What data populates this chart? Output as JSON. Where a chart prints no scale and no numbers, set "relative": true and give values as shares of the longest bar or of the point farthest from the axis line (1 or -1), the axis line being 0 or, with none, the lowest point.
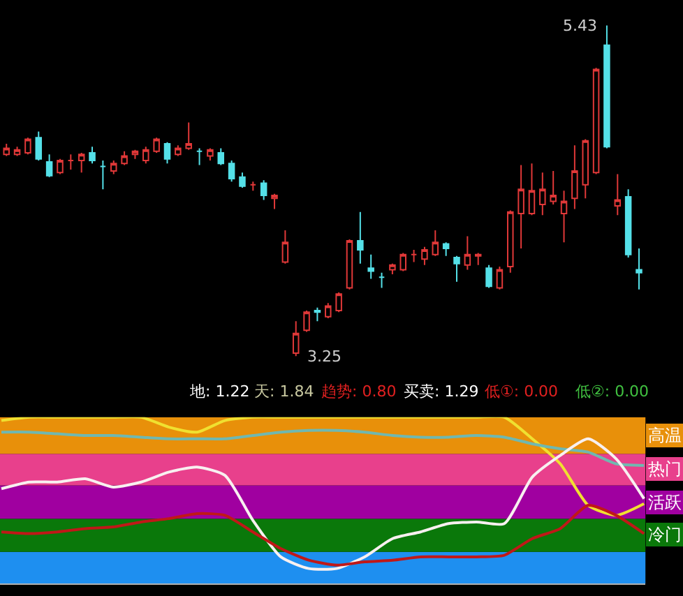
{
  "chart_data": [
    {
      "type": "candlestick",
      "categories": [
        null,
        null,
        null,
        null,
        null,
        null,
        null,
        null,
        null,
        null,
        null,
        null,
        null,
        null,
        null,
        null,
        null,
        null,
        null,
        null,
        null,
        null,
        null,
        null,
        null,
        null,
        null,
        null,
        null,
        null,
        null,
        null,
        null,
        null,
        null,
        null,
        null,
        null,
        null,
        null,
        null,
        null,
        null,
        null,
        null,
        null,
        null,
        null,
        null,
        null,
        null,
        null,
        null,
        null,
        null,
        null,
        null,
        null,
        null,
        null
      ],
      "ohlc": [
        [
          4.58,
          4.65,
          4.57,
          4.62
        ],
        [
          4.58,
          4.63,
          4.57,
          4.61
        ],
        [
          4.59,
          4.69,
          4.58,
          4.68
        ],
        [
          4.69,
          4.73,
          4.54,
          4.55
        ],
        [
          4.53,
          4.58,
          4.43,
          4.44
        ],
        [
          4.46,
          4.55,
          4.45,
          4.54
        ],
        [
          4.54,
          4.58,
          4.48,
          4.54
        ],
        [
          4.54,
          4.59,
          4.46,
          4.58
        ],
        [
          4.59,
          4.63,
          4.52,
          4.54
        ],
        [
          4.5,
          4.54,
          4.35,
          4.5
        ],
        [
          4.47,
          4.54,
          4.45,
          4.52
        ],
        [
          4.52,
          4.6,
          4.51,
          4.57
        ],
        [
          4.58,
          4.61,
          4.55,
          4.6
        ],
        [
          4.54,
          4.63,
          4.52,
          4.61
        ],
        [
          4.6,
          4.69,
          4.59,
          4.68
        ],
        [
          4.65,
          4.66,
          4.52,
          4.55
        ],
        [
          4.58,
          4.64,
          4.57,
          4.62
        ],
        [
          4.62,
          4.79,
          4.61,
          4.65
        ],
        [
          4.6,
          4.62,
          4.51,
          4.6
        ],
        [
          4.57,
          4.62,
          4.54,
          4.61
        ],
        [
          4.59,
          4.62,
          4.51,
          4.52
        ],
        [
          4.52,
          4.54,
          4.4,
          4.42
        ],
        [
          4.43,
          4.46,
          4.36,
          4.37
        ],
        [
          4.38,
          4.4,
          4.34,
          4.38
        ],
        [
          4.39,
          4.41,
          4.28,
          4.31
        ],
        [
          4.29,
          4.32,
          4.22,
          4.31
        ],
        [
          3.87,
          4.08,
          3.86,
          4.0
        ],
        [
          3.27,
          3.48,
          3.25,
          3.4
        ],
        [
          3.42,
          3.55,
          3.41,
          3.54
        ],
        [
          3.55,
          3.57,
          3.48,
          3.54
        ],
        [
          3.51,
          3.6,
          3.5,
          3.58
        ],
        [
          3.55,
          3.67,
          3.54,
          3.66
        ],
        [
          3.7,
          4.02,
          3.69,
          4.01
        ],
        [
          4.01,
          4.2,
          3.86,
          3.95
        ],
        [
          3.83,
          3.92,
          3.76,
          3.81
        ],
        [
          3.77,
          3.8,
          3.7,
          3.77
        ],
        [
          3.82,
          3.86,
          3.79,
          3.85
        ],
        [
          3.82,
          3.93,
          3.81,
          3.92
        ],
        [
          3.92,
          3.95,
          3.87,
          3.92
        ],
        [
          3.89,
          3.97,
          3.85,
          3.95
        ],
        [
          3.92,
          4.08,
          3.91,
          4.0
        ],
        [
          3.99,
          4.0,
          3.91,
          3.96
        ],
        [
          3.9,
          3.91,
          3.74,
          3.86
        ],
        [
          3.85,
          4.04,
          3.82,
          3.92
        ],
        [
          3.91,
          3.93,
          3.85,
          3.92
        ],
        [
          3.83,
          3.85,
          3.7,
          3.71
        ],
        [
          3.7,
          3.84,
          3.69,
          3.82
        ],
        [
          3.84,
          4.21,
          3.8,
          4.2
        ],
        [
          4.19,
          4.51,
          3.96,
          4.35
        ],
        [
          4.19,
          4.52,
          4.18,
          4.34
        ],
        [
          4.25,
          4.46,
          4.18,
          4.35
        ],
        [
          4.27,
          4.47,
          4.25,
          4.31
        ],
        [
          4.19,
          4.34,
          4.0,
          4.27
        ],
        [
          4.29,
          4.64,
          4.22,
          4.47
        ],
        [
          4.38,
          4.68,
          4.29,
          4.67
        ],
        [
          4.46,
          5.15,
          4.45,
          5.14
        ],
        [
          5.3,
          5.43,
          4.62,
          4.63
        ],
        [
          4.24,
          4.45,
          4.18,
          4.28
        ],
        [
          4.3,
          4.35,
          3.9,
          3.92
        ],
        [
          3.82,
          3.96,
          3.69,
          3.8
        ]
      ],
      "annotations": [
        "5.43",
        "3.25"
      ]
    },
    {
      "type": "line",
      "relative": true,
      "categories": [
        null,
        null,
        null,
        null,
        null,
        null,
        null,
        null,
        null,
        null,
        null,
        null,
        null,
        null,
        null,
        null,
        null,
        null,
        null,
        null,
        null,
        null,
        null,
        null
      ],
      "series": [
        {
          "color": "#f0e030",
          "values": [
            0.98,
            1.0,
            1.0,
            1.0,
            1.0,
            1.0,
            0.94,
            0.91,
            0.98,
            1.0,
            1.0,
            1.0,
            1.0,
            1.0,
            1.0,
            1.0,
            1.0,
            1.0,
            1.0,
            0.87,
            0.72,
            0.47,
            0.41,
            0.48
          ]
        },
        {
          "color": "#70b8b0",
          "values": [
            0.91,
            0.91,
            0.9,
            0.89,
            0.89,
            0.88,
            0.87,
            0.87,
            0.87,
            0.89,
            0.91,
            0.92,
            0.92,
            0.91,
            0.89,
            0.88,
            0.88,
            0.89,
            0.88,
            0.84,
            0.81,
            0.79,
            0.72,
            0.71
          ]
        },
        {
          "color": "#f8f0f0",
          "values": [
            0.57,
            0.61,
            0.61,
            0.63,
            0.58,
            0.61,
            0.67,
            0.7,
            0.65,
            0.38,
            0.16,
            0.09,
            0.09,
            0.16,
            0.27,
            0.31,
            0.36,
            0.37,
            0.36,
            0.64,
            0.77,
            0.87,
            0.75,
            0.51
          ]
        },
        {
          "color": "#c01818",
          "values": [
            0.31,
            0.3,
            0.31,
            0.33,
            0.34,
            0.37,
            0.39,
            0.42,
            0.41,
            0.31,
            0.21,
            0.14,
            0.11,
            0.13,
            0.14,
            0.16,
            0.16,
            0.16,
            0.17,
            0.27,
            0.33,
            0.47,
            0.41,
            0.3
          ]
        }
      ],
      "bands": [
        {
          "axis": "y",
          "from": 0,
          "to": 0.19,
          "color": "#1e8ff0"
        },
        {
          "axis": "y",
          "from": 0.19,
          "to": 0.39,
          "color": "#0a780a",
          "label": "冷门"
        },
        {
          "axis": "y",
          "from": 0.39,
          "to": 0.59,
          "color": "#a000a0",
          "label": "活跃"
        },
        {
          "axis": "y",
          "from": 0.59,
          "to": 0.78,
          "color": "#e8408c",
          "label": "热门"
        },
        {
          "axis": "y",
          "from": 0.78,
          "to": 1.0,
          "color": "#e8900a",
          "label": "高温"
        }
      ],
      "annotations": [
        "地: 1.22",
        "天: 1.84",
        "趋势: 0.80",
        "买卖: 1.29",
        "低①: 0.00",
        "低②: 0.00"
      ]
    }
  ]
}
